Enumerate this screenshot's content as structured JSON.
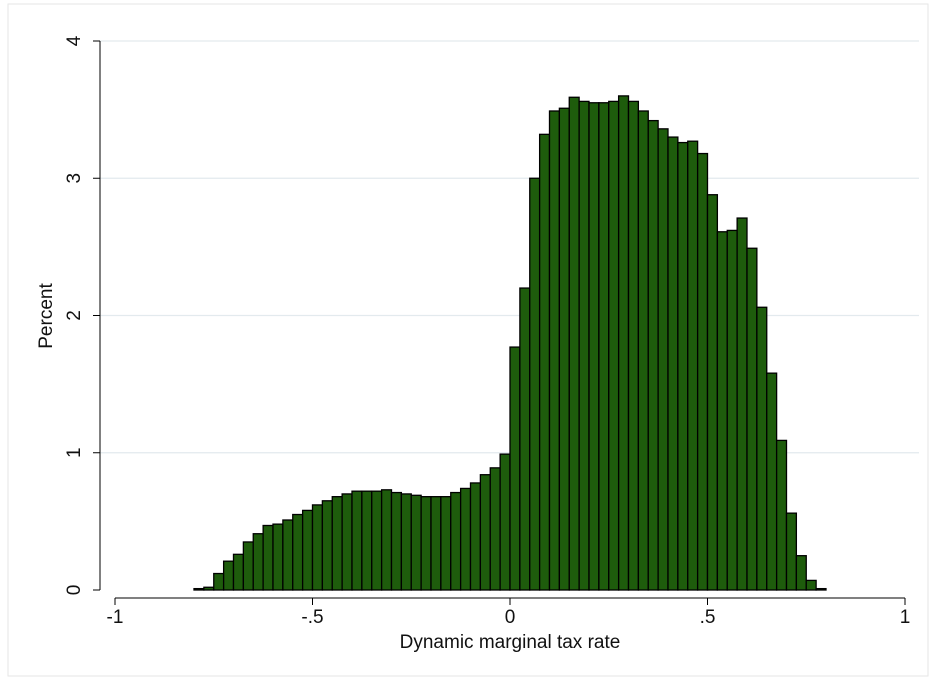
{
  "chart_data": {
    "type": "histogram",
    "x_label": "Dynamic marginal tax rate",
    "y_label": "Percent",
    "color": "#1e5c0c",
    "bins": [
      -0.8,
      -0.775,
      -0.75,
      -0.725,
      -0.7,
      -0.675,
      -0.65,
      -0.625,
      -0.6,
      -0.575,
      -0.55,
      -0.525,
      -0.5,
      -0.475,
      -0.45,
      -0.425,
      -0.4,
      -0.375,
      -0.35,
      -0.325,
      -0.3,
      -0.275,
      -0.25,
      -0.225,
      -0.2,
      -0.175,
      -0.15,
      -0.125,
      -0.1,
      -0.075,
      -0.05,
      -0.025,
      0,
      0.025,
      0.05,
      0.075,
      0.1,
      0.125,
      0.15,
      0.175,
      0.2,
      0.225,
      0.25,
      0.275,
      0.3,
      0.325,
      0.35,
      0.375,
      0.4,
      0.425,
      0.45,
      0.475,
      0.5,
      0.525,
      0.55,
      0.575,
      0.6,
      0.625,
      0.65,
      0.675,
      0.7,
      0.725,
      0.75,
      0.775,
      0.8
    ],
    "values": [
      0.01,
      0.02,
      0.12,
      0.21,
      0.26,
      0.35,
      0.41,
      0.47,
      0.48,
      0.51,
      0.55,
      0.58,
      0.62,
      0.65,
      0.68,
      0.7,
      0.72,
      0.72,
      0.72,
      0.73,
      0.71,
      0.7,
      0.69,
      0.68,
      0.68,
      0.68,
      0.71,
      0.74,
      0.78,
      0.84,
      0.89,
      0.99,
      1.77,
      2.2,
      3.0,
      3.32,
      3.49,
      3.51,
      3.59,
      3.56,
      3.55,
      3.55,
      3.56,
      3.6,
      3.56,
      3.49,
      3.42,
      3.36,
      3.3,
      3.26,
      3.27,
      3.18,
      2.88,
      2.61,
      2.62,
      2.71,
      2.49,
      2.06,
      1.58,
      1.09,
      0.56,
      0.25,
      0.07,
      0.01
    ],
    "xlim": [
      -1,
      1
    ],
    "xticks": [
      -1,
      {
        "value": -0.5,
        "label": "-.5"
      },
      0,
      {
        "value": 0.5,
        "label": ".5"
      },
      1
    ],
    "ylim": [
      0,
      4
    ],
    "yticks": [
      0,
      1,
      2,
      3,
      4
    ],
    "grid": true
  }
}
